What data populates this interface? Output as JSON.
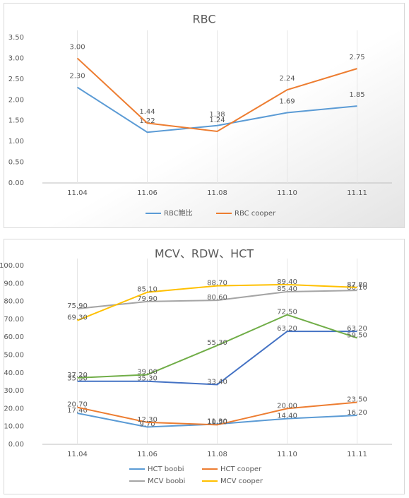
{
  "chart_data": [
    {
      "type": "line",
      "title": "RBC",
      "categories": [
        "11.04",
        "11.06",
        "11.08",
        "11.10",
        "11.11"
      ],
      "series": [
        {
          "name": "RBC鲍比",
          "color": "#5b9bd5",
          "values": [
            2.3,
            1.22,
            1.38,
            1.69,
            1.85
          ],
          "value_labels": [
            "2.30",
            "1.22",
            "1.38",
            "1.69",
            "1.85"
          ]
        },
        {
          "name": "RBC cooper",
          "color": "#ed7d31",
          "values": [
            3.0,
            1.44,
            1.24,
            2.24,
            2.75
          ],
          "value_labels": [
            "3.00",
            "1.44",
            "1.24",
            "2.24",
            "2.75"
          ]
        }
      ],
      "ylim": [
        0,
        3.5
      ],
      "yticks": [
        {
          "value": 0,
          "label": "0.00"
        },
        {
          "value": 0.5,
          "label": "0.50"
        },
        {
          "value": 1,
          "label": "1.00"
        },
        {
          "value": 1.5,
          "label": "1.50"
        },
        {
          "value": 2,
          "label": "2.00"
        },
        {
          "value": 2.5,
          "label": "2.50"
        },
        {
          "value": 3,
          "label": "3.00"
        },
        {
          "value": 3.5,
          "label": "3.50"
        }
      ],
      "legend": "bottom"
    },
    {
      "type": "line",
      "title": "MCV、RDW、HCT",
      "categories": [
        "11.04",
        "11.06",
        "11.08",
        "11.10",
        "11.11"
      ],
      "series": [
        {
          "name": "HCT boobi",
          "color": "#5b9bd5",
          "values": [
            17.4,
            9.7,
            11.3,
            14.4,
            16.2
          ],
          "value_labels": [
            "17.40",
            "9.70",
            "11.30",
            "14.40",
            "16.20"
          ]
        },
        {
          "name": "HCT cooper",
          "color": "#ed7d31",
          "values": [
            20.7,
            12.3,
            10.9,
            20.0,
            23.5
          ],
          "value_labels": [
            "20.70",
            "12.30",
            "10.90",
            "20.00",
            "23.50"
          ]
        },
        {
          "name": "MCV boobi",
          "color": "#a5a5a5",
          "values": [
            75.9,
            79.9,
            80.6,
            85.4,
            86.1
          ],
          "value_labels": [
            "75.90",
            "79.90",
            "80.60",
            "85.40",
            "86.10"
          ]
        },
        {
          "name": "MCV cooper",
          "color": "#ffc000",
          "values": [
            69.3,
            85.1,
            88.7,
            89.4,
            87.8
          ],
          "value_labels": [
            "69.30",
            "85.10",
            "88.70",
            "89.40",
            "87.80"
          ]
        },
        {
          "color": "#4472c4",
          "values": [
            35.3,
            35.3,
            33.4,
            63.2,
            63.2
          ],
          "value_labels": [
            "35.30",
            "35.30",
            "33.40",
            "63.20",
            "63.20"
          ]
        },
        {
          "color": "#70ad47",
          "values": [
            37.2,
            39.0,
            55.3,
            72.5,
            59.5
          ],
          "value_labels": [
            "37.20",
            "39.00",
            "55.30",
            "72.50",
            "59.50"
          ]
        }
      ],
      "ylim": [
        0,
        100
      ],
      "yticks": [
        {
          "value": 0,
          "label": "0.00"
        },
        {
          "value": 10,
          "label": "10.00"
        },
        {
          "value": 20,
          "label": "20.00"
        },
        {
          "value": 30,
          "label": "30.00"
        },
        {
          "value": 40,
          "label": "40.00"
        },
        {
          "value": 50,
          "label": "50.00"
        },
        {
          "value": 60,
          "label": "60.00"
        },
        {
          "value": 70,
          "label": "70.00"
        },
        {
          "value": 80,
          "label": "80.00"
        },
        {
          "value": 90,
          "label": "90.00"
        },
        {
          "value": 100,
          "label": "100.00"
        }
      ],
      "legend": "bottom"
    }
  ]
}
